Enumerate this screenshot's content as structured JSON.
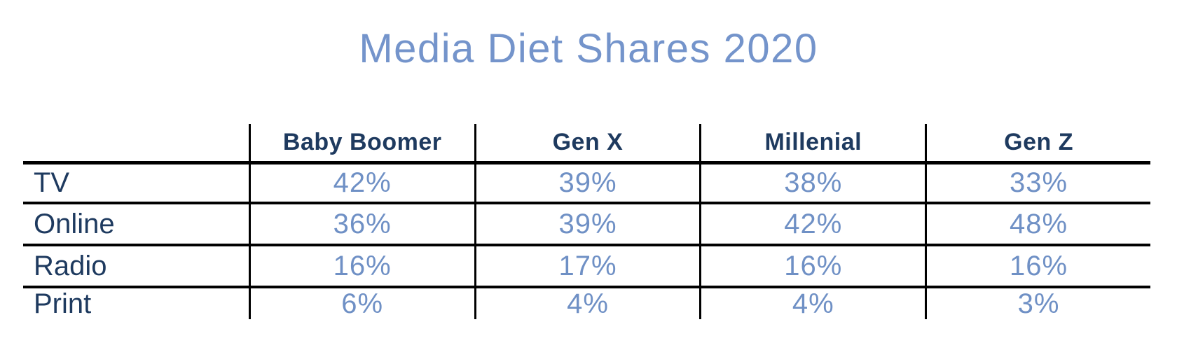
{
  "title": "Media Diet Shares 2020",
  "colors": {
    "title_blue": "#7494cb",
    "value_blue": "#6f90c5",
    "header_navy": "#1e3a5f",
    "rule_black": "#000000",
    "background": "#ffffff"
  },
  "table": {
    "columns": [
      "",
      "Baby Boomer",
      "Gen X",
      "Millenial",
      "Gen Z"
    ],
    "rows": [
      {
        "label": "TV",
        "values": [
          "42%",
          "39%",
          "38%",
          "33%"
        ]
      },
      {
        "label": "Online",
        "values": [
          "36%",
          "39%",
          "42%",
          "48%"
        ]
      },
      {
        "label": "Radio",
        "values": [
          "16%",
          "17%",
          "16%",
          "16%"
        ]
      },
      {
        "label": "Print",
        "values": [
          "6%",
          "4%",
          "4%",
          "3%"
        ]
      }
    ]
  },
  "chart_data": {
    "type": "table",
    "title": "Media Diet Shares 2020",
    "categories": [
      "Baby Boomer",
      "Gen X",
      "Millenial",
      "Gen Z"
    ],
    "series": [
      {
        "name": "TV",
        "values": [
          42,
          39,
          38,
          33
        ]
      },
      {
        "name": "Online",
        "values": [
          36,
          39,
          42,
          48
        ]
      },
      {
        "name": "Radio",
        "values": [
          16,
          17,
          16,
          16
        ]
      },
      {
        "name": "Print",
        "values": [
          6,
          4,
          4,
          3
        ]
      }
    ],
    "unit": "%",
    "layout": "rows are media types, columns are generations, grid lines on, no bottom border on last row"
  }
}
